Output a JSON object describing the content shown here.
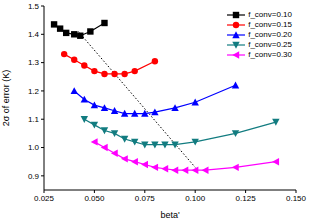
{
  "chart_data": {
    "type": "line",
    "x_label": "beta'",
    "y_label": "2σ of error (K)",
    "xlim": [
      0.025,
      0.15
    ],
    "xticks": [
      {
        "value": 0.025,
        "label": "0.025"
      },
      {
        "value": 0.05,
        "label": "0.050"
      },
      {
        "value": 0.075,
        "label": "0.075"
      },
      {
        "value": 0.1,
        "label": "0.100"
      },
      {
        "value": 0.125,
        "label": "0.125"
      },
      {
        "value": 0.15,
        "label": "0.150"
      }
    ],
    "ylim": [
      0.85,
      1.5
    ],
    "yticks": [
      0.9,
      {
        "value": 1.0,
        "label": "1.0"
      },
      1.1,
      1.2,
      1.3,
      1.4,
      1.5
    ],
    "grid": false,
    "legend": "upper right",
    "series": [
      {
        "name": "f_conv=0.10",
        "color": "#000000",
        "marker": "square",
        "x": [
          0.03,
          0.033,
          0.036,
          0.04,
          0.043,
          0.048,
          0.055
        ],
        "values": [
          1.435,
          1.42,
          1.405,
          1.4,
          1.395,
          1.41,
          1.44
        ]
      },
      {
        "name": "f_conv=0.15",
        "color": "#ff0000",
        "marker": "circle",
        "x": [
          0.035,
          0.04,
          0.045,
          0.05,
          0.055,
          0.06,
          0.065,
          0.07,
          0.08
        ],
        "values": [
          1.33,
          1.31,
          1.29,
          1.27,
          1.26,
          1.26,
          1.26,
          1.27,
          1.305
        ]
      },
      {
        "name": "f_conv=0.20",
        "color": "#0000ff",
        "marker": "triangle-up",
        "x": [
          0.04,
          0.045,
          0.05,
          0.055,
          0.06,
          0.065,
          0.07,
          0.075,
          0.08,
          0.09,
          0.1,
          0.12
        ],
        "values": [
          1.2,
          1.17,
          1.15,
          1.14,
          1.13,
          1.12,
          1.12,
          1.12,
          1.125,
          1.14,
          1.16,
          1.22
        ]
      },
      {
        "name": "f_conv=0.25",
        "color": "#127c80",
        "marker": "triangle-down",
        "x": [
          0.045,
          0.05,
          0.055,
          0.06,
          0.065,
          0.07,
          0.075,
          0.08,
          0.085,
          0.09,
          0.1,
          0.12,
          0.14
        ],
        "values": [
          1.1,
          1.08,
          1.06,
          1.05,
          1.03,
          1.02,
          1.01,
          1.01,
          1.01,
          1.01,
          1.02,
          1.05,
          1.09
        ]
      },
      {
        "name": "f_conv=0.30",
        "color": "#ff00ff",
        "marker": "triangle-left",
        "x": [
          0.05,
          0.055,
          0.06,
          0.065,
          0.07,
          0.075,
          0.08,
          0.085,
          0.09,
          0.095,
          0.1,
          0.105,
          0.12,
          0.14
        ],
        "values": [
          1.02,
          1.0,
          0.98,
          0.96,
          0.95,
          0.94,
          0.93,
          0.925,
          0.92,
          0.92,
          0.92,
          0.92,
          0.93,
          0.95
        ]
      }
    ],
    "trend_line": {
      "color": "#000000",
      "line_style": "dotted",
      "x": [
        0.042,
        0.1
      ],
      "values": [
        1.41,
        0.93
      ]
    }
  }
}
